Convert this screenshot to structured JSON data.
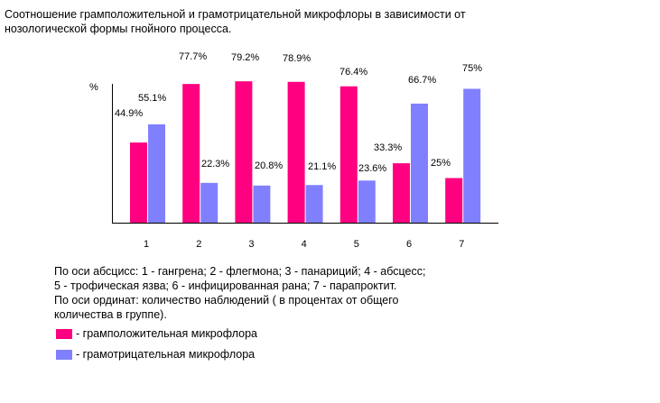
{
  "chart_data": {
    "type": "bar",
    "title": "Соотношение грамположительной и грамотрицательной микрофлоры в зависимости от нозологической формы гнойного процесса.",
    "title_lines": [
      "Соотношение грамположительной и грамотрицательной микрофлоры в зависимости от",
      "нозологической формы гнойного процесса."
    ],
    "ylabel": "%",
    "categories": [
      "1",
      "2",
      "3",
      "4",
      "5",
      "6",
      "7"
    ],
    "series": [
      {
        "name": "- грамположительная микрофлора",
        "color": "#FF0080",
        "values": [
          44.9,
          77.7,
          79.2,
          78.9,
          76.4,
          33.3,
          25
        ],
        "labels": [
          "44.9%",
          "77.7%",
          "79.2%",
          "78.9%",
          "76.4%",
          "33.3%",
          "25%"
        ]
      },
      {
        "name": "- грамотрицательная микрофлора",
        "color": "#8080FF",
        "values": [
          55.1,
          22.3,
          20.8,
          21.1,
          23.6,
          66.7,
          75
        ],
        "labels": [
          "55.1%",
          "22.3%",
          "20.8%",
          "21.1%",
          "23.6%",
          "66.7%",
          "75%"
        ]
      }
    ],
    "ylim": [
      0,
      80
    ],
    "grid": false,
    "notes": [
      "По оси абсцисс: 1 - гангрена; 2 - флегмона; 3 - панариций; 4 - абсцесс;",
      "5 - трофическая язва; 6 - инфицированная рана; 7 - парапроктит.",
      "По оси ординат: количество наблюдений ( в процентах от общего",
      "количества в группе)."
    ]
  }
}
